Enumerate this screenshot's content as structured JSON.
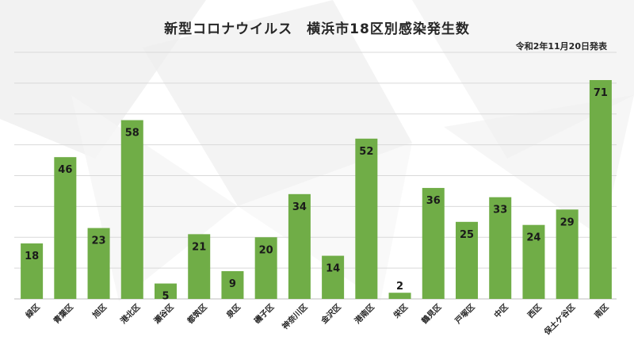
{
  "chart_data": {
    "type": "bar",
    "title": "新型コロナウイルス　横浜市18区別感染発生数",
    "subtitle": "令和2年11月20日発表",
    "categories": [
      "緑区",
      "青葉区",
      "旭区",
      "港北区",
      "瀬谷区",
      "都筑区",
      "泉区",
      "磯子区",
      "神奈川区",
      "金沢区",
      "港南区",
      "栄区",
      "鶴見区",
      "戸塚区",
      "中区",
      "西区",
      "保土ケ谷区",
      "南区"
    ],
    "values": [
      18,
      46,
      23,
      58,
      5,
      21,
      9,
      20,
      34,
      14,
      52,
      2,
      36,
      25,
      33,
      24,
      29,
      71
    ],
    "ylim": [
      0,
      80
    ],
    "grid": true,
    "bar_color": "#70AD47",
    "grid_color": "#d9d9d9"
  }
}
